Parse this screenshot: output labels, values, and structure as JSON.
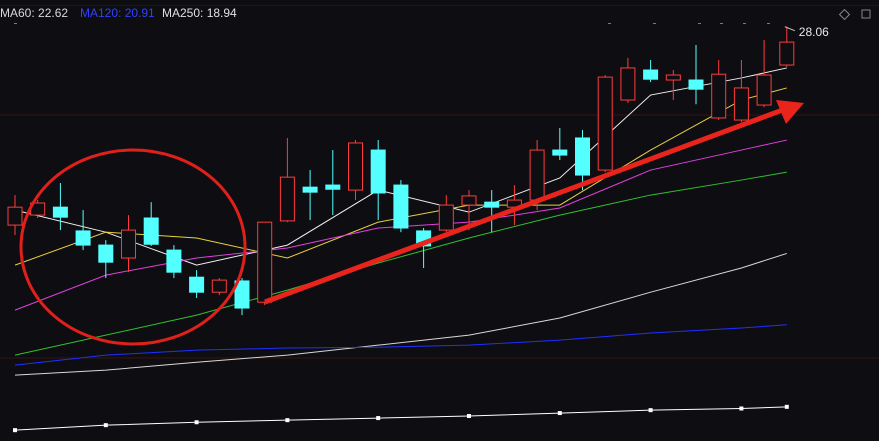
{
  "chart_data": {
    "type": "candlestick",
    "ylim": [
      18.12,
      28.7
    ],
    "up_color": "#ff3b3b",
    "down_color": "#54ffff",
    "candles": {
      "open": [
        23.3,
        23.54,
        23.73,
        23.16,
        22.82,
        22.51,
        23.47,
        22.7,
        22.05,
        21.69,
        21.96,
        21.45,
        23.4,
        24.21,
        24.26,
        24.14,
        25.1,
        24.26,
        23.16,
        23.18,
        23.78,
        23.85,
        23.73,
        23.9,
        25.1,
        25.39,
        24.62,
        26.3,
        27.02,
        26.78,
        26.78,
        25.87,
        25.82,
        26.18,
        27.14
      ],
      "high": [
        24.02,
        23.9,
        24.31,
        23.66,
        22.94,
        23.54,
        23.85,
        22.82,
        22.22,
        22.03,
        22.03,
        23.37,
        25.39,
        24.62,
        25.1,
        25.34,
        25.34,
        24.38,
        23.23,
        24.02,
        24.14,
        24.14,
        24.26,
        25.34,
        25.63,
        25.58,
        26.9,
        27.31,
        27.26,
        27.02,
        27.62,
        27.26,
        27.26,
        27.74,
        28.06
      ],
      "low": [
        23.06,
        23.47,
        23.18,
        22.7,
        22.03,
        22.17,
        22.8,
        22.03,
        21.55,
        21.62,
        21.14,
        21.38,
        23.37,
        23.42,
        23.54,
        23.9,
        23.42,
        23.13,
        22.27,
        23.13,
        23.18,
        23.13,
        23.3,
        23.66,
        24.86,
        24.14,
        24.57,
        26.23,
        26.73,
        26.3,
        26.2,
        25.82,
        25.77,
        26.13,
        27.09
      ],
      "close": [
        23.73,
        23.83,
        23.49,
        22.82,
        22.41,
        23.18,
        22.84,
        22.17,
        21.69,
        21.98,
        21.31,
        23.37,
        24.45,
        24.09,
        24.16,
        25.27,
        24.07,
        23.23,
        22.8,
        23.78,
        24.0,
        23.73,
        23.9,
        25.1,
        24.98,
        24.5,
        26.85,
        27.07,
        26.8,
        26.9,
        26.56,
        26.92,
        26.59,
        26.9,
        27.69
      ]
    },
    "ma_x": [
      0,
      4,
      8,
      12,
      16,
      20,
      24,
      28,
      32,
      34
    ],
    "ma_lines": [
      {
        "color": "#f0f0f0",
        "values": [
          23.66,
          23.13,
          22.34,
          22.82,
          24.14,
          23.61,
          24.43,
          26.42,
          26.83,
          27.07
        ]
      },
      {
        "color": "#e8d040",
        "values": [
          22.34,
          23.13,
          22.99,
          22.51,
          23.37,
          23.78,
          23.78,
          25.1,
          26.3,
          26.59
        ]
      },
      {
        "color": "#e040e0",
        "values": [
          21.26,
          22.1,
          22.51,
          22.75,
          23.23,
          23.37,
          23.71,
          24.62,
          25.1,
          25.34
        ]
      },
      {
        "color": "#30c030",
        "values": [
          20.18,
          20.66,
          21.14,
          21.74,
          22.39,
          22.99,
          23.54,
          24.02,
          24.38,
          24.57
        ]
      },
      {
        "color": "#d8d8d8",
        "values": [
          19.7,
          19.82,
          20.01,
          20.18,
          20.42,
          20.66,
          21.07,
          21.69,
          22.27,
          22.62
        ]
      },
      {
        "color": "#2030ff",
        "values": [
          19.94,
          20.18,
          20.3,
          20.35,
          20.37,
          20.42,
          20.54,
          20.71,
          20.83,
          20.91
        ]
      },
      {
        "color": "#ffffff",
        "markers": true,
        "values": [
          18.38,
          18.5,
          18.57,
          18.62,
          18.67,
          18.72,
          18.79,
          18.86,
          18.9,
          18.94
        ]
      }
    ],
    "legend": [
      {
        "text": "MA60: 22.62",
        "color": "#d8d8d8"
      },
      {
        "text": "MA120: 20.91",
        "color": "#3040ff"
      },
      {
        "text": "MA250: 18.94",
        "color": "#e0e0e0"
      }
    ]
  }
}
